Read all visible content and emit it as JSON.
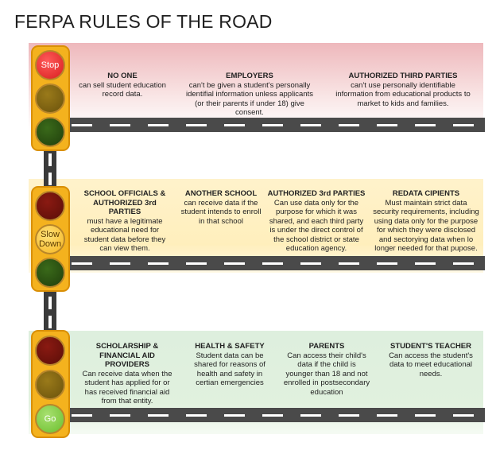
{
  "title": "FERPA RULES OF THE ROAD",
  "lights": {
    "stop_label": "Stop",
    "slow_label": "Slow Down",
    "go_label": "Go"
  },
  "stop_row": [
    {
      "heading": "NO ONE",
      "body": "can sell student education record data."
    },
    {
      "heading": "EMPLOYERS",
      "body": "can't be given a student's personally identifial information unless applicants (or their parents if under 18) give consent."
    },
    {
      "heading": "AUTHORIZED THIRD PARTIES",
      "body": "can't use personally identifiable information from educational products to market to kids and families."
    }
  ],
  "slow_row": [
    {
      "heading": "SCHOOL OFFICIALS & AUTHORIZED 3rd  PARTIES",
      "body": "must have a legitimate educational need for student data before they can view them."
    },
    {
      "heading": "ANOTHER SCHOOL",
      "body": "can receive data if the student intends to enroll in that school"
    },
    {
      "heading": "AUTHORIZED 3rd PARTIES",
      "body": "Can use data only for the purpose for which it was shared, and each third party is under the direct control of the school district or state education agency."
    },
    {
      "heading": "REDATA CIPIENTS",
      "body": "Must maintain strict data security requirements, including using data only for the purpose for which they were disclosed and sectorying data when lo longer needed for that pupose."
    }
  ],
  "go_row": [
    {
      "heading": "SCHOLARSHIP & FINANCIAL AID PROVIDERS",
      "body": "Can receive data when the student has applied for or has received financial aid from that entity."
    },
    {
      "heading": "HEALTH & SAFETY",
      "body": "Student data can be shared for reasons of health and safety in certian emergencies"
    },
    {
      "heading": "PARENTS",
      "body": "Can access their child's data if the child is younger than 18 and not enrolled in postsecondary education"
    },
    {
      "heading": "STUDENT'S TEACHER",
      "body": "Can access the student's data to meet educational needs."
    }
  ]
}
